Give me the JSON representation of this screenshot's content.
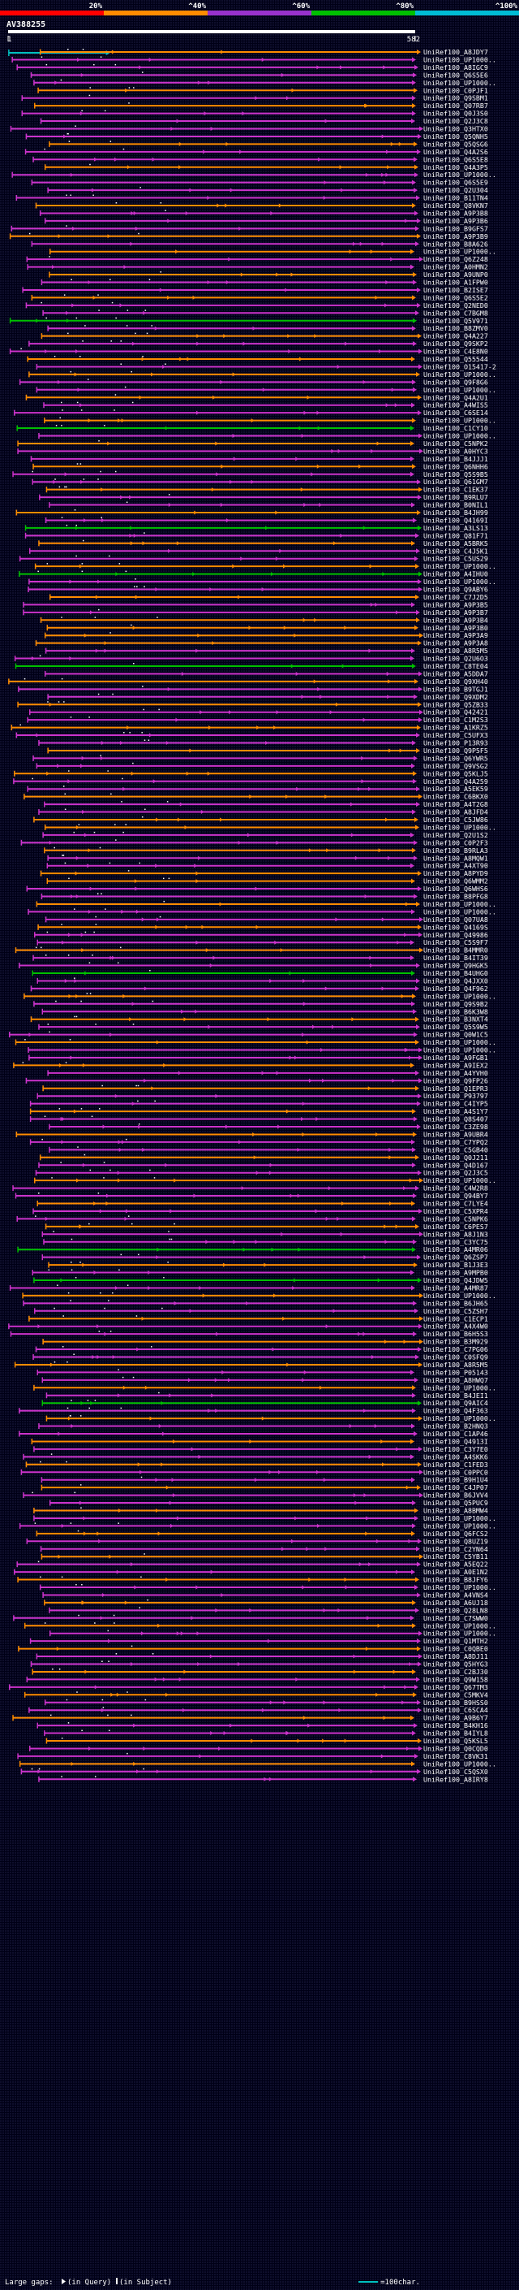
{
  "chart_data": {
    "type": "alignment-overview",
    "query_id": "AV388255",
    "query_length": 582,
    "query_start_label": "1",
    "query_end_label": "582",
    "identity_scale": [
      {
        "label": "20%",
        "color": "#ff0000"
      },
      {
        "label": "^40%",
        "color": "#ff8c00"
      },
      {
        "label": "^60%",
        "color": "#9932cc"
      },
      {
        "label": "^80%",
        "color": "#00c000"
      },
      {
        "label": "^100%",
        "color": "#00bcd4"
      }
    ],
    "domain_bar": {
      "start": 1,
      "end": 140,
      "color": "#00c0c0"
    },
    "hits": [
      {
        "label": "UniRef100_A8JDY7",
        "color": "orange"
      },
      {
        "label": "UniRef100_UP1000..",
        "color": "purple"
      },
      {
        "label": "UniRef100_A8IGC9",
        "color": "purple"
      },
      {
        "label": "UniRef100_Q6S5E6",
        "color": "purple"
      },
      {
        "label": "UniRef100_UP1000..",
        "color": "purple"
      },
      {
        "label": "UniRef100_C0PJF1",
        "color": "orange"
      },
      {
        "label": "UniRef100_Q9SBM1",
        "color": "purple"
      },
      {
        "label": "UniRef100_Q07RB7",
        "color": "orange"
      },
      {
        "label": "UniRef100_Q0J3S0",
        "color": "purple"
      },
      {
        "label": "UniRef100_Q2J3C8",
        "color": "purple"
      },
      {
        "label": "UniRef100_Q3HTX0",
        "color": "purple"
      },
      {
        "label": "UniRef100_Q5QNH5",
        "color": "purple"
      },
      {
        "label": "UniRef100_Q5QSG6",
        "color": "orange"
      },
      {
        "label": "UniRef100_Q4A2S6",
        "color": "purple"
      },
      {
        "label": "UniRef100_Q6S5E8",
        "color": "purple"
      },
      {
        "label": "UniRef100_Q4A3P5",
        "color": "orange"
      },
      {
        "label": "UniRef100_UP1000..",
        "color": "purple"
      },
      {
        "label": "UniRef100_Q6S5E9",
        "color": "purple"
      },
      {
        "label": "UniRef100_Q2U304",
        "color": "purple"
      },
      {
        "label": "UniRef100_B11TN4",
        "color": "purple"
      },
      {
        "label": "UniRef100_Q8VKN7",
        "color": "orange"
      },
      {
        "label": "UniRef100_A9P3B8",
        "color": "purple"
      },
      {
        "label": "UniRef100_A9P3B6",
        "color": "purple"
      },
      {
        "label": "UniRef100_B9GFS7",
        "color": "purple"
      },
      {
        "label": "UniRef100_A9P3B9",
        "color": "orange"
      },
      {
        "label": "UniRef100_B8A626",
        "color": "purple"
      },
      {
        "label": "UniRef100_UP1000..",
        "color": "orange"
      },
      {
        "label": "UniRef100_Q6Z248",
        "color": "purple"
      },
      {
        "label": "UniRef100_A0HMN2",
        "color": "purple"
      },
      {
        "label": "UniRef100_A9UNP0",
        "color": "orange"
      },
      {
        "label": "UniRef100_A1FPW0",
        "color": "purple"
      },
      {
        "label": "UniRef100_B2ISE7",
        "color": "purple"
      },
      {
        "label": "UniRef100_Q6S5E2",
        "color": "orange"
      },
      {
        "label": "UniRef100_Q2NED0",
        "color": "purple"
      },
      {
        "label": "UniRef100_C7BGM8",
        "color": "purple"
      },
      {
        "label": "UniRef100_Q5V971",
        "color": "green"
      },
      {
        "label": "UniRef100_B8ZMV0",
        "color": "purple"
      },
      {
        "label": "UniRef100_Q4A227",
        "color": "orange"
      },
      {
        "label": "UniRef100_Q9SKP2",
        "color": "purple"
      },
      {
        "label": "UniRef100_C4E8N0",
        "color": "purple"
      },
      {
        "label": "UniRef100_Q55544",
        "color": "orange"
      },
      {
        "label": "UniRef100_O15417-2",
        "color": "purple"
      },
      {
        "label": "UniRef100_UP1000..",
        "color": "orange"
      },
      {
        "label": "UniRef100_Q9F8G6",
        "color": "purple"
      },
      {
        "label": "UniRef100_UP1000..",
        "color": "purple"
      },
      {
        "label": "UniRef100_Q4A2U1",
        "color": "orange"
      },
      {
        "label": "UniRef100_A4WIS5",
        "color": "purple"
      },
      {
        "label": "UniRef100_C6SE14",
        "color": "purple"
      },
      {
        "label": "UniRef100_UP1000..",
        "color": "orange"
      },
      {
        "label": "UniRef100_C1CY10",
        "color": "green"
      },
      {
        "label": "UniRef100_UP1000..",
        "color": "purple"
      },
      {
        "label": "UniRef100_C5NPK2",
        "color": "orange"
      },
      {
        "label": "UniRef100_A0HYC3",
        "color": "purple"
      },
      {
        "label": "UniRef100_B4JJJ1",
        "color": "purple"
      },
      {
        "label": "UniRef100_Q6NHH6",
        "color": "orange"
      },
      {
        "label": "UniRef100_Q5S9B5",
        "color": "purple"
      },
      {
        "label": "UniRef100_Q61GM7",
        "color": "purple"
      },
      {
        "label": "UniRef100_C1EK37",
        "color": "orange"
      },
      {
        "label": "UniRef100_B9RLU7",
        "color": "purple"
      },
      {
        "label": "UniRef100_B0NIL1",
        "color": "purple"
      },
      {
        "label": "UniRef100_B4JH99",
        "color": "orange"
      },
      {
        "label": "UniRef100_Q4169I",
        "color": "purple"
      },
      {
        "label": "UniRef100_A3LS13",
        "color": "green"
      },
      {
        "label": "UniRef100_Q81F71",
        "color": "purple"
      },
      {
        "label": "UniRef100_A5BRK5",
        "color": "orange"
      },
      {
        "label": "UniRef100_C4J5K1",
        "color": "purple"
      },
      {
        "label": "UniRef100_C5US29",
        "color": "purple"
      },
      {
        "label": "UniRef100_UP1000..",
        "color": "orange"
      },
      {
        "label": "UniRef100_A4IHU0",
        "color": "green"
      },
      {
        "label": "UniRef100_UP1000..",
        "color": "purple"
      },
      {
        "label": "UniRef100_Q9ABY6",
        "color": "purple"
      },
      {
        "label": "UniRef100_C7J2D5",
        "color": "orange"
      },
      {
        "label": "UniRef100_A9P3B5",
        "color": "purple"
      },
      {
        "label": "UniRef100_A9P3B7",
        "color": "purple"
      },
      {
        "label": "UniRef100_A9P3B4",
        "color": "orange"
      },
      {
        "label": "UniRef100_A9P3B0",
        "color": "orange"
      },
      {
        "label": "UniRef100_A9P3A9",
        "color": "orange"
      },
      {
        "label": "UniRef100_A9P3A8",
        "color": "orange"
      },
      {
        "label": "UniRef100_A8R5M5",
        "color": "purple"
      },
      {
        "label": "UniRef100_Q2U6O3",
        "color": "purple"
      },
      {
        "label": "UniRef100_C8TE04",
        "color": "green"
      },
      {
        "label": "UniRef100_A5DDA7",
        "color": "purple"
      },
      {
        "label": "UniRef100_Q9XH40",
        "color": "orange"
      },
      {
        "label": "UniRef100_B9TGJ1",
        "color": "purple"
      },
      {
        "label": "UniRef100_Q9XDM2",
        "color": "purple"
      },
      {
        "label": "UniRef100_Q5ZB33",
        "color": "orange"
      },
      {
        "label": "UniRef100_Q42421",
        "color": "purple"
      },
      {
        "label": "UniRef100_C1M2S3",
        "color": "purple"
      },
      {
        "label": "UniRef100_A1KRZ5",
        "color": "orange"
      },
      {
        "label": "UniRef100_C5UFX3",
        "color": "purple"
      },
      {
        "label": "UniRef100_P13R93",
        "color": "purple"
      },
      {
        "label": "UniRef100_Q9P5F5",
        "color": "orange"
      },
      {
        "label": "UniRef100_Q6YWR5",
        "color": "purple"
      },
      {
        "label": "UniRef100_Q9VSG2",
        "color": "purple"
      },
      {
        "label": "UniRef100_Q5KLJ5",
        "color": "orange"
      },
      {
        "label": "UniRef100_Q4A259",
        "color": "purple"
      },
      {
        "label": "UniRef100_A5EK59",
        "color": "purple"
      },
      {
        "label": "UniRef100_C6BKX0",
        "color": "orange"
      },
      {
        "label": "UniRef100_A4T2G8",
        "color": "purple"
      },
      {
        "label": "UniRef100_A8JFD4",
        "color": "purple"
      },
      {
        "label": "UniRef100_C5JW86",
        "color": "orange"
      },
      {
        "label": "UniRef100_UP1000..",
        "color": "orange"
      },
      {
        "label": "UniRef100_Q2U1S2",
        "color": "purple"
      },
      {
        "label": "UniRef100_C0P2F3",
        "color": "purple"
      },
      {
        "label": "UniRef100_B9RLA3",
        "color": "orange"
      },
      {
        "label": "UniRef100_A8MQW1",
        "color": "purple"
      },
      {
        "label": "UniRef100_A4XT90",
        "color": "purple"
      },
      {
        "label": "UniRef100_A8PYD9",
        "color": "orange"
      },
      {
        "label": "UniRef100_Q6WMM2",
        "color": "orange"
      },
      {
        "label": "UniRef100_Q6WHS6",
        "color": "purple"
      },
      {
        "label": "UniRef100_B8PFG8",
        "color": "purple"
      },
      {
        "label": "UniRef100_UP1000..",
        "color": "orange"
      },
      {
        "label": "UniRef100_UP1000..",
        "color": "purple"
      },
      {
        "label": "UniRef100_Q07UA8",
        "color": "purple"
      },
      {
        "label": "UniRef100_Q4169S",
        "color": "orange"
      },
      {
        "label": "UniRef100_Q49986",
        "color": "purple"
      },
      {
        "label": "UniRef100_C5S9F7",
        "color": "purple"
      },
      {
        "label": "UniRef100_B4MMR0",
        "color": "orange"
      },
      {
        "label": "UniRef100_B4IT39",
        "color": "purple"
      },
      {
        "label": "UniRef100_Q9HGK5",
        "color": "purple"
      },
      {
        "label": "UniRef100_B4UHG0",
        "color": "green"
      },
      {
        "label": "UniRef100_Q4JXX0",
        "color": "purple"
      },
      {
        "label": "UniRef100_Q4F962",
        "color": "purple"
      },
      {
        "label": "UniRef100_UP1000..",
        "color": "orange"
      },
      {
        "label": "UniRef100_Q9S9B2",
        "color": "purple"
      },
      {
        "label": "UniRef100_B6K3W8",
        "color": "purple"
      },
      {
        "label": "UniRef100_B3NXT4",
        "color": "orange"
      },
      {
        "label": "UniRef100_Q5S9W5",
        "color": "purple"
      },
      {
        "label": "UniRef100_Q0W1C5",
        "color": "purple"
      },
      {
        "label": "UniRef100_UP1000..",
        "color": "orange"
      },
      {
        "label": "UniRef100_UP1000..",
        "color": "purple"
      },
      {
        "label": "UniRef100_A9FGB1",
        "color": "purple"
      },
      {
        "label": "UniRef100_A9IEX2",
        "color": "orange"
      },
      {
        "label": "UniRef100_A4YVH0",
        "color": "purple"
      },
      {
        "label": "UniRef100_Q9FP26",
        "color": "purple"
      },
      {
        "label": "UniRef100_Q1EPR3",
        "color": "orange"
      },
      {
        "label": "UniRef100_P93797",
        "color": "purple"
      },
      {
        "label": "UniRef100_C4IYP5",
        "color": "purple"
      },
      {
        "label": "UniRef100_A4S1Y7",
        "color": "orange"
      },
      {
        "label": "UniRef100_Q8S407",
        "color": "purple"
      },
      {
        "label": "UniRef100_C3ZE98",
        "color": "purple"
      },
      {
        "label": "UniRef100_A9UBR4",
        "color": "orange"
      },
      {
        "label": "UniRef100_C7YPQ2",
        "color": "purple"
      },
      {
        "label": "UniRef100_C5GB40",
        "color": "purple"
      },
      {
        "label": "UniRef100_Q0J211",
        "color": "orange"
      },
      {
        "label": "UniRef100_Q4D167",
        "color": "purple"
      },
      {
        "label": "UniRef100_Q2J3C5",
        "color": "purple"
      },
      {
        "label": "UniRef100_UP1000..",
        "color": "orange"
      },
      {
        "label": "UniRef100_C4W2R8",
        "color": "purple"
      },
      {
        "label": "UniRef100_Q94BY7",
        "color": "purple"
      },
      {
        "label": "UniRef100_C7LYE4",
        "color": "orange"
      },
      {
        "label": "UniRef100_C5XPR4",
        "color": "purple"
      },
      {
        "label": "UniRef100_C5NPK6",
        "color": "purple"
      },
      {
        "label": "UniRef100_C6PES7",
        "color": "orange"
      },
      {
        "label": "UniRef100_A8J1N3",
        "color": "purple"
      },
      {
        "label": "UniRef100_C3YC75",
        "color": "purple"
      },
      {
        "label": "UniRef100_A4MR06",
        "color": "green"
      },
      {
        "label": "UniRef100_Q6ZSP7",
        "color": "purple"
      },
      {
        "label": "UniRef100_B1J3E3",
        "color": "orange"
      },
      {
        "label": "UniRef100_A9MPB0",
        "color": "purple"
      },
      {
        "label": "UniRef100_Q4JDW5",
        "color": "green"
      },
      {
        "label": "UniRef100_A4MR87",
        "color": "purple"
      },
      {
        "label": "UniRef100_UP1000..",
        "color": "orange"
      },
      {
        "label": "UniRef100_B6JH65",
        "color": "purple"
      },
      {
        "label": "UniRef100_C5ZSH7",
        "color": "purple"
      },
      {
        "label": "UniRef100_C1ECP1",
        "color": "orange"
      },
      {
        "label": "UniRef100_A4X4W0",
        "color": "purple"
      },
      {
        "label": "UniRef100_B6H5S3",
        "color": "purple"
      },
      {
        "label": "UniRef100_B3M929",
        "color": "orange"
      },
      {
        "label": "UniRef100_C7PG06",
        "color": "purple"
      },
      {
        "label": "UniRef100_C0SFQ9",
        "color": "purple"
      },
      {
        "label": "UniRef100_A8R5M5",
        "color": "orange"
      },
      {
        "label": "UniRef100_P05143",
        "color": "purple"
      },
      {
        "label": "UniRef100_A8HWQ7",
        "color": "purple"
      },
      {
        "label": "UniRef100_UP1000..",
        "color": "orange"
      },
      {
        "label": "UniRef100_B4JEI1",
        "color": "purple"
      },
      {
        "label": "UniRef100_Q9AIC4",
        "color": "green"
      },
      {
        "label": "UniRef100_Q4F363",
        "color": "purple"
      },
      {
        "label": "UniRef100_UP1000..",
        "color": "orange"
      },
      {
        "label": "UniRef100_B2HNQ3",
        "color": "purple"
      },
      {
        "label": "UniRef100_C1AP46",
        "color": "purple"
      },
      {
        "label": "UniRef100_Q4913I",
        "color": "orange"
      },
      {
        "label": "UniRef100_C3Y7E0",
        "color": "purple"
      },
      {
        "label": "UniRef100_A4SKK6",
        "color": "purple"
      },
      {
        "label": "UniRef100_C1FED3",
        "color": "orange"
      },
      {
        "label": "UniRef100_C0PPC0",
        "color": "purple"
      },
      {
        "label": "UniRef100_B9H1U4",
        "color": "purple"
      },
      {
        "label": "UniRef100_C4JP07",
        "color": "orange"
      },
      {
        "label": "UniRef100_B6JVV4",
        "color": "purple"
      },
      {
        "label": "UniRef100_Q5PUC9",
        "color": "purple"
      },
      {
        "label": "UniRef100_A8BMW4",
        "color": "orange"
      },
      {
        "label": "UniRef100_UP1000..",
        "color": "purple"
      },
      {
        "label": "UniRef100_UP1000..",
        "color": "purple"
      },
      {
        "label": "UniRef100_Q6FCS2",
        "color": "orange"
      },
      {
        "label": "UniRef100_Q8UZ19",
        "color": "purple"
      },
      {
        "label": "UniRef100_C2YN64",
        "color": "purple"
      },
      {
        "label": "UniRef100_C5YB11",
        "color": "orange"
      },
      {
        "label": "UniRef100_A5EQ22",
        "color": "purple"
      },
      {
        "label": "UniRef100_A0E1N2",
        "color": "purple"
      },
      {
        "label": "UniRef100_B8JFY6",
        "color": "orange"
      },
      {
        "label": "UniRef100_UP1000..",
        "color": "purple"
      },
      {
        "label": "UniRef100_A4VNS4",
        "color": "purple"
      },
      {
        "label": "UniRef100_A6UJ18",
        "color": "orange"
      },
      {
        "label": "UniRef100_Q28LN8",
        "color": "purple"
      },
      {
        "label": "UniRef100_C7SWW0",
        "color": "purple"
      },
      {
        "label": "UniRef100_UP1000..",
        "color": "orange"
      },
      {
        "label": "UniRef100_UP1000..",
        "color": "purple"
      },
      {
        "label": "UniRef100_Q1MTH2",
        "color": "purple"
      },
      {
        "label": "UniRef100_C0QBE0",
        "color": "orange"
      },
      {
        "label": "UniRef100_A8DJ11",
        "color": "purple"
      },
      {
        "label": "UniRef100_Q5HYG3",
        "color": "purple"
      },
      {
        "label": "UniRef100_C2BJ30",
        "color": "orange"
      },
      {
        "label": "UniRef100_Q9W158",
        "color": "purple"
      },
      {
        "label": "UniRef100_Q67TM3",
        "color": "purple"
      },
      {
        "label": "UniRef100_C5MKV4",
        "color": "orange"
      },
      {
        "label": "UniRef100_B9HSS0",
        "color": "purple"
      },
      {
        "label": "UniRef100_C6SCA4",
        "color": "purple"
      },
      {
        "label": "UniRef100_A9B6Y7",
        "color": "orange"
      },
      {
        "label": "UniRef100_B4KH16",
        "color": "purple"
      },
      {
        "label": "UniRef100_B4IYL8",
        "color": "purple"
      },
      {
        "label": "UniRef100_Q5KSL5",
        "color": "orange"
      },
      {
        "label": "UniRef100_Q0CQD0",
        "color": "purple"
      },
      {
        "label": "UniRef100_C8VK31",
        "color": "purple"
      },
      {
        "label": "UniRef100_UP1000..",
        "color": "orange"
      },
      {
        "label": "UniRef100_C5QSX0",
        "color": "purple"
      },
      {
        "label": "UniRef100_A8IRY8",
        "color": "purple"
      }
    ],
    "legend_items": {
      "large_gaps": "Large gaps:",
      "query_gap": "(in Query)",
      "subject_gap": "(in Subject)",
      "scale_bar": "=100char."
    }
  }
}
